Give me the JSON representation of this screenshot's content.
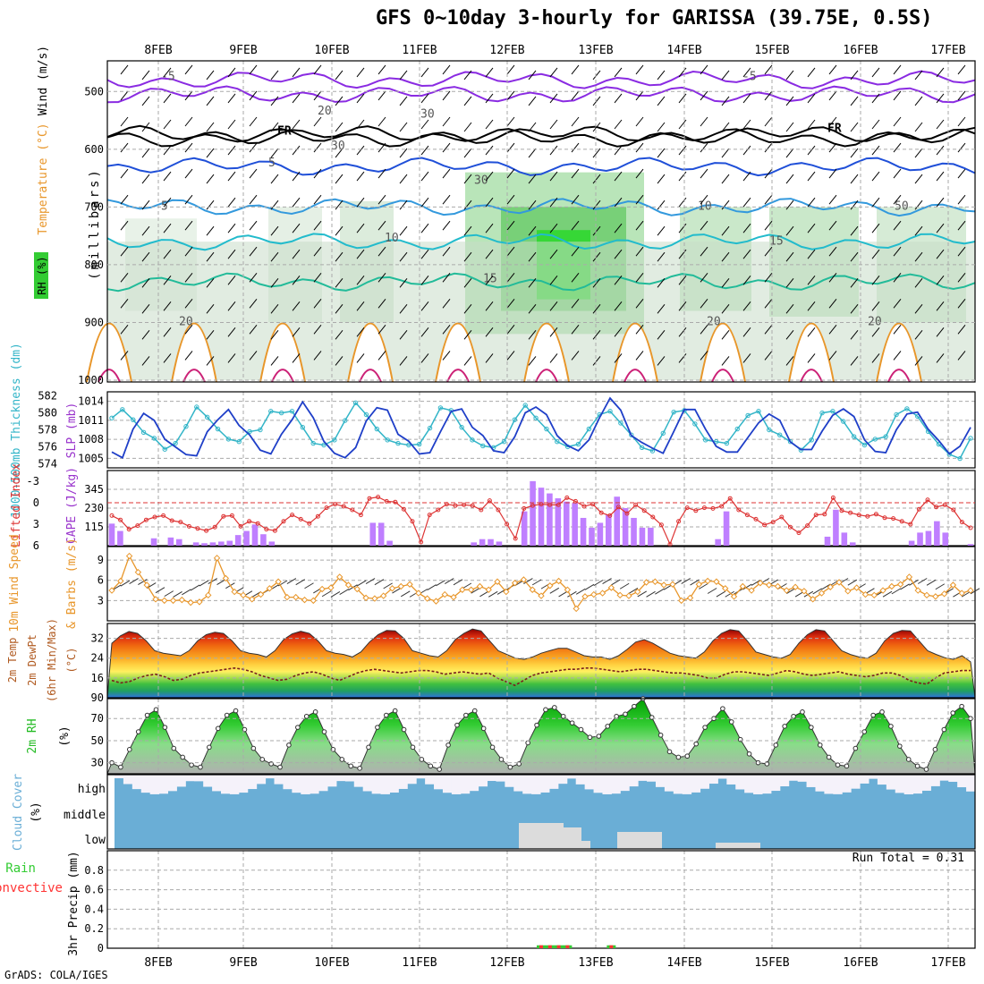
{
  "title": "GFS 0~10day 3-hourly for GARISSA (39.75E, 0.5S)",
  "credit": "GrADS: COLA/IGES",
  "run_total_label": "Run Total = 0.31",
  "dates": [
    "8FEB",
    "9FEB",
    "10FEB",
    "11FEB",
    "12FEB",
    "13FEB",
    "14FEB",
    "15FEB",
    "16FEB",
    "17FEB"
  ],
  "colors": {
    "rh_green": "#33cc33",
    "temp_line_purple": "#9933cc",
    "slp_blue": "#1f3fc8",
    "thickness_cyan": "#33b5c8",
    "lifted_red": "#dd3333",
    "cape_purple": "#bf7fff",
    "wind_orange": "#e8962a",
    "rh2m_green": "#22bb22",
    "cloud_blue": "#6aaed6",
    "precip_green": "#33cc33",
    "precip_red": "#ff3333"
  },
  "chart_data": [
    {
      "panel": "upper-air",
      "type": "heatmap",
      "ylabels": [
        "Temperature (°C)",
        "Wind (m/s)",
        "RH (%)"
      ],
      "yaxis_label": "(millibars)",
      "yticks": [
        500,
        600,
        700,
        800,
        900,
        1000
      ],
      "isotherm_labels": [
        "-5",
        "-5",
        "FR",
        "FR",
        "5",
        "5",
        "10",
        "10",
        "15",
        "15",
        "20",
        "20",
        "20",
        "20",
        "30",
        "30",
        "30",
        "50"
      ]
    },
    {
      "panel": "slp-thickness",
      "type": "line",
      "ylabels": [
        "1000-500mb Thickness (dm)",
        "SLP (mb)"
      ],
      "thickness_ticks": [
        574,
        576,
        578,
        580,
        582
      ],
      "slp_ticks": [
        1005,
        1008,
        1011,
        1014
      ],
      "series": [
        {
          "name": "SLP",
          "values": [
            1006.0,
            1005.1,
            1009.6,
            1012.1,
            1011.0,
            1008.0,
            1006.8,
            1005.6,
            1005.4,
            1009.2,
            1011.1,
            1012.7,
            1010.2,
            1008.7,
            1006.3,
            1005.7,
            1008.8,
            1011.1,
            1013.9,
            1011.4,
            1007.7,
            1005.8,
            1005.1,
            1006.7,
            1010.9,
            1013.0,
            1012.6,
            1008.8,
            1007.7,
            1005.7,
            1005.9,
            1009.2,
            1012.4,
            1012.8,
            1009.9,
            1008.6,
            1006.2,
            1005.9,
            1008.4,
            1012.2,
            1013.1,
            1011.9,
            1008.6,
            1007.0,
            1006.2,
            1007.9,
            1011.4,
            1014.5,
            1012.6,
            1008.6,
            1007.5,
            1006.6,
            1005.8,
            1009.2,
            1012.7,
            1012.7,
            1009.6,
            1006.9,
            1006.0,
            1006.0,
            1008.3,
            1010.6,
            1012.0,
            1011.0,
            1007.6,
            1006.4,
            1006.4,
            1009.3,
            1011.8,
            1012.8,
            1011.6,
            1007.9,
            1006.1,
            1005.9,
            1009.5,
            1012.0,
            1012.3,
            1009.6,
            1007.8,
            1005.7,
            1006.9,
            1009.9
          ]
        },
        {
          "name": "Thickness",
          "values": [
            579.4,
            580.4,
            579.2,
            577.7,
            577.0,
            575.7,
            576.4,
            578.4,
            580.7,
            579.5,
            578.1,
            576.9,
            576.6,
            577.8,
            578.0,
            580.2,
            580.0,
            580.2,
            578.3,
            576.4,
            576.2,
            576.8,
            579.1,
            581.2,
            579.8,
            578.1,
            576.8,
            576.4,
            576.2,
            576.3,
            578.2,
            580.6,
            580.3,
            578.3,
            576.8,
            576.1,
            575.9,
            576.6,
            579.2,
            580.9,
            579.4,
            578.1,
            576.6,
            576.0,
            576.3,
            578.1,
            579.8,
            580.2,
            578.8,
            577.4,
            575.9,
            575.5,
            577.6,
            580.1,
            580.3,
            578.7,
            576.8,
            576.6,
            576.4,
            578.1,
            579.7,
            580.2,
            578.0,
            577.4,
            576.6,
            575.6,
            576.8,
            580.0,
            580.2,
            579.0,
            577.2,
            576.2,
            576.9,
            577.2,
            579.8,
            580.5,
            579.6,
            577.8,
            576.3,
            575.1,
            574.6,
            577.0
          ]
        }
      ]
    },
    {
      "panel": "cape-li",
      "type": "bar",
      "ylabels": [
        "Lifted Index",
        "CAPE (J/kg)"
      ],
      "li_ticks": [
        -3,
        0,
        3,
        6
      ],
      "cape_ticks": [
        115,
        230,
        345
      ],
      "series": [
        {
          "name": "CAPE",
          "values": [
            135,
            90,
            0,
            0,
            0,
            45,
            0,
            50,
            40,
            0,
            20,
            15,
            20,
            25,
            30,
            65,
            90,
            130,
            70,
            25,
            0,
            0,
            0,
            0,
            0,
            0,
            0,
            0,
            0,
            0,
            0,
            140,
            140,
            30,
            0,
            0,
            0,
            0,
            0,
            0,
            0,
            0,
            0,
            20,
            40,
            40,
            25,
            0,
            0,
            210,
            395,
            355,
            320,
            290,
            270,
            260,
            170,
            110,
            140,
            190,
            300,
            230,
            170,
            110,
            110,
            0,
            0,
            0,
            0,
            0,
            0,
            0,
            40,
            210,
            0,
            0,
            0,
            0,
            0,
            0,
            0,
            0,
            0,
            0,
            0,
            55,
            220,
            80,
            20,
            0,
            0,
            0,
            0,
            0,
            0,
            30,
            80,
            90,
            150,
            80,
            0,
            0,
            10
          ]
        },
        {
          "name": "Lifted Index",
          "values": [
            1.8,
            2.4,
            3.7,
            3.2,
            2.4,
            2.0,
            1.8,
            2.5,
            2.7,
            3.3,
            3.6,
            3.9,
            3.4,
            1.9,
            1.8,
            3.3,
            2.6,
            2.9,
            3.7,
            3.9,
            2.6,
            1.7,
            2.3,
            2.9,
            1.9,
            0.7,
            0.2,
            0.5,
            1.0,
            1.7,
            -0.6,
            -0.8,
            -0.2,
            -0.1,
            0.9,
            2.6,
            5.5,
            1.7,
            1.0,
            0.2,
            0.4,
            0.3,
            0.4,
            1.0,
            -0.3,
            1.0,
            3.0,
            5.0,
            0.8,
            0.4,
            0.2,
            0.3,
            0.3,
            -0.7,
            -0.2,
            0.5,
            0.2,
            1.4,
            1.8,
            0.6,
            1.5,
            0.3,
            1.1,
            2.0,
            3.1,
            5.8,
            2.6,
            0.7,
            1.1,
            0.7,
            0.8,
            0.5,
            -0.6,
            1.0,
            1.7,
            2.3,
            3.1,
            2.7,
            2.0,
            3.4,
            4.2,
            3.2,
            1.7,
            1.6,
            -0.7,
            1.1,
            1.4,
            1.7,
            1.9,
            1.6,
            2.1,
            2.2,
            2.6,
            3.0,
            0.9,
            -0.4,
            0.6,
            0.3,
            1.0,
            2.7,
            3.5
          ]
        }
      ]
    },
    {
      "panel": "wind10m",
      "type": "line",
      "ylabels": [
        "10m Wind Speed",
        "& Barbs (m/s)"
      ],
      "yticks": [
        3,
        6,
        9
      ],
      "series": [
        {
          "name": "Wind speed",
          "values": [
            4.5,
            5.9,
            9.6,
            7.2,
            5.3,
            3.2,
            3.0,
            3.0,
            3.1,
            2.7,
            2.8,
            3.8,
            9.3,
            6.3,
            4.3,
            3.8,
            3.2,
            3.9,
            4.8,
            5.8,
            3.5,
            3.5,
            3.1,
            3.0,
            4.7,
            4.9,
            6.5,
            5.3,
            4.7,
            3.4,
            3.3,
            3.7,
            4.8,
            5.1,
            5.4,
            4.1,
            3.3,
            2.9,
            3.9,
            3.5,
            4.6,
            4.6,
            5.1,
            4.6,
            5.8,
            4.3,
            5.6,
            6.1,
            4.6,
            3.7,
            5.2,
            5.9,
            4.6,
            1.8,
            3.6,
            3.9,
            4.1,
            4.9,
            3.8,
            3.7,
            4.3,
            5.7,
            5.8,
            5.3,
            5.4,
            3.0,
            3.4,
            5.4,
            5.9,
            5.8,
            4.8,
            3.6,
            5.1,
            4.5,
            5.6,
            5.3,
            5.1,
            4.5,
            5.0,
            4.4,
            3.2,
            4.1,
            5.0,
            5.7,
            4.4,
            4.9,
            3.9,
            3.8,
            4.5,
            5.1,
            5.4,
            6.5,
            4.5,
            3.8,
            3.6,
            4.0,
            5.3,
            4.1,
            4.5
          ]
        }
      ]
    },
    {
      "panel": "temp2m",
      "type": "area",
      "ylabels": [
        "2m Temp",
        "2m DewPt",
        "(6hr Min/Max)",
        "(°C)"
      ],
      "yticks": [
        16,
        24,
        32,
        90
      ],
      "series": [
        {
          "name": "2m Temp",
          "values": [
            30,
            33,
            34.8,
            34,
            31,
            27,
            26,
            25.5,
            25,
            27,
            31,
            33.5,
            34.5,
            34,
            31,
            27,
            26,
            25.5,
            24.5,
            27,
            31.5,
            33.8,
            34.9,
            34,
            31,
            27,
            26,
            25.5,
            24.5,
            26.5,
            30.5,
            33.5,
            35.2,
            35,
            32,
            27,
            26,
            25,
            24.5,
            27,
            31.5,
            34,
            35.8,
            35,
            31,
            27,
            25.5,
            24,
            23.5,
            24.5,
            26,
            27,
            28,
            28,
            26.5,
            25,
            24.5,
            24.5,
            23.5,
            25,
            27.5,
            30.5,
            31.5,
            30,
            28,
            26,
            25,
            24.5,
            24,
            26.5,
            31,
            34,
            35.5,
            35,
            31,
            26.5,
            25.5,
            24.5,
            24,
            25.5,
            30,
            33.5,
            35.5,
            35,
            31,
            27,
            25.5,
            24.5,
            24,
            26,
            31,
            34,
            35.2,
            35,
            31,
            27,
            25.5,
            24.2,
            23.5,
            25,
            22.5
          ]
        },
        {
          "name": "2m DewPt",
          "values": [
            15,
            14,
            14.5,
            16,
            17,
            17.5,
            16.5,
            15,
            15.5,
            17,
            18,
            18.5,
            19,
            19.5,
            20,
            19.5,
            18.5,
            17,
            16,
            15,
            15.5,
            17,
            18,
            18.5,
            17.5,
            16,
            15,
            16.5,
            18,
            19,
            19.5,
            19,
            18.5,
            18,
            18.5,
            19,
            19,
            18.5,
            17.5,
            18,
            18.5,
            18,
            17.5,
            18,
            16,
            14.5,
            13,
            15,
            17,
            18,
            18.5,
            19,
            19.5,
            19.5,
            20,
            20,
            19.5,
            19,
            18.5,
            19,
            19.5,
            19.5,
            19,
            18.5,
            18,
            18,
            17.5,
            17,
            16,
            16,
            17.5,
            18.5,
            18.5,
            18,
            17.5,
            17,
            18,
            19,
            18.5,
            17.5,
            17,
            17.5,
            18,
            18.5,
            17.5,
            17,
            16.5,
            17,
            18,
            18,
            17,
            15,
            14,
            13.5,
            16,
            18,
            18.5,
            19,
            19
          ]
        }
      ]
    },
    {
      "panel": "rh2m",
      "type": "area",
      "ylabels": [
        "2m RH",
        "(%)"
      ],
      "yticks": [
        30,
        50,
        70
      ],
      "series": [
        {
          "name": "2m RH",
          "values": [
            30,
            26,
            42,
            58,
            73,
            78,
            62,
            43,
            35,
            28,
            26,
            44,
            61,
            73,
            77,
            60,
            43,
            33,
            29,
            26,
            46,
            62,
            72,
            76,
            58,
            42,
            33,
            27,
            25,
            44,
            62,
            73,
            77,
            60,
            44,
            33,
            27,
            24,
            46,
            64,
            73,
            77,
            61,
            44,
            33,
            26,
            29,
            48,
            64,
            78,
            80,
            72,
            66,
            60,
            53,
            54,
            63,
            72,
            74,
            81,
            88,
            71,
            55,
            40,
            35,
            36,
            47,
            62,
            70,
            79,
            67,
            51,
            38,
            30,
            29,
            46,
            63,
            72,
            76,
            62,
            46,
            35,
            28,
            27,
            43,
            58,
            73,
            76,
            63,
            45,
            33,
            27,
            24,
            42,
            60,
            75,
            81,
            70
          ]
        }
      ]
    },
    {
      "panel": "cloud-cover",
      "type": "area",
      "ylabels": [
        "Cloud Cover",
        "(%)"
      ],
      "layers": [
        "high",
        "middle",
        "low"
      ]
    },
    {
      "panel": "precip",
      "type": "bar",
      "ylabels": [
        "Total / Rain",
        "Convective",
        "3hr Precip (mm)"
      ],
      "yticks": [
        0,
        0.2,
        0.4,
        0.6,
        0.8
      ],
      "series": [
        {
          "name": "Total / Rain",
          "points": [
            {
              "x": 49,
              "value": 0.03
            },
            {
              "x": 50,
              "value": 0.03
            },
            {
              "x": 51,
              "value": 0.03
            },
            {
              "x": 52,
              "value": 0.03
            },
            {
              "x": 57,
              "value": 0.03
            }
          ]
        }
      ]
    }
  ]
}
